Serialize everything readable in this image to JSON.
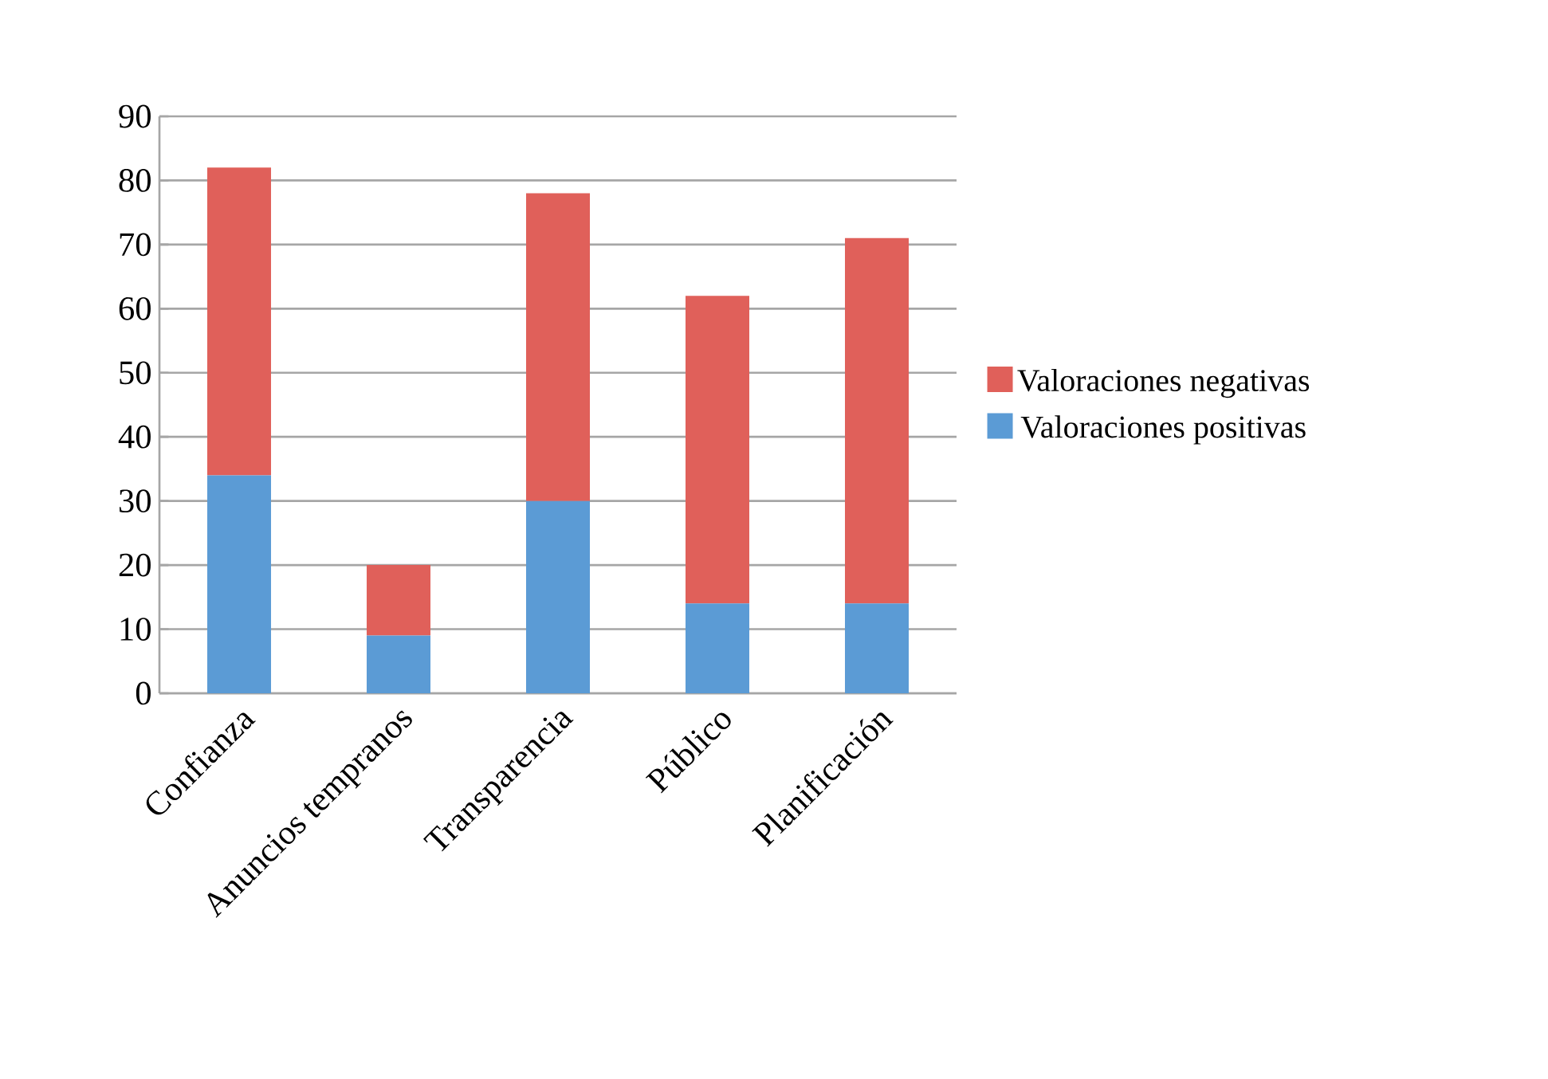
{
  "chart_data": {
    "type": "bar",
    "stacked": true,
    "categories": [
      "Confianza",
      "Anuncios tempranos",
      "Transparencia",
      "Público",
      "Planificación"
    ],
    "series": [
      {
        "name": "Valoraciones positivas",
        "color": "#5b9bd5",
        "values": [
          34,
          9,
          30,
          14,
          14
        ]
      },
      {
        "name": "Valoraciones negativas",
        "color": "#e0605a",
        "values": [
          48,
          11,
          48,
          48,
          57
        ]
      }
    ],
    "ylim": [
      0,
      90
    ],
    "yticks": [
      0,
      10,
      20,
      30,
      40,
      50,
      60,
      70,
      80,
      90
    ],
    "grid": "y",
    "legend": "right"
  }
}
